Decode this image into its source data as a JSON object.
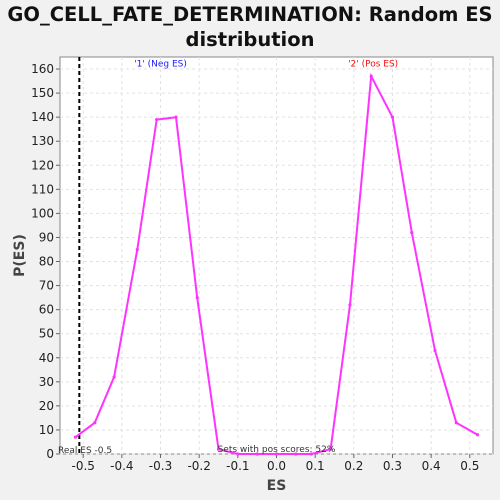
{
  "chart_data": {
    "type": "line",
    "title_lines": [
      "GO_CELL_FATE_DETERMINATION: Random ES",
      "distribution"
    ],
    "xlabel": "ES",
    "ylabel": "P(ES)",
    "xlim": [
      -0.56,
      0.56
    ],
    "ylim": [
      0,
      165
    ],
    "xticks": [
      -0.5,
      -0.4,
      -0.3,
      -0.2,
      -0.1,
      0.0,
      0.1,
      0.2,
      0.3,
      0.4,
      0.5
    ],
    "xtick_labels": [
      "-0.5",
      "-0.4",
      "-0.3",
      "-0.2",
      "-0.1",
      "0.0",
      "0.1",
      "0.2",
      "0.3",
      "0.4",
      "0.5"
    ],
    "yticks": [
      0,
      10,
      20,
      30,
      40,
      50,
      60,
      70,
      80,
      90,
      100,
      110,
      120,
      130,
      140,
      150,
      160
    ],
    "grid": true,
    "series": [
      {
        "color": "#ff33ff",
        "x": [
          -0.52,
          -0.47,
          -0.42,
          -0.36,
          -0.31,
          -0.26,
          -0.205,
          -0.15,
          -0.1,
          -0.05,
          0.0,
          0.05,
          0.09,
          0.14,
          0.19,
          0.245,
          0.3,
          0.35,
          0.41,
          0.465,
          0.52
        ],
        "y": [
          7,
          13,
          32,
          85,
          139,
          140,
          65,
          2,
          0,
          0,
          0,
          0,
          0,
          2,
          62,
          157,
          140,
          92,
          43,
          13,
          8
        ]
      }
    ],
    "real_es": {
      "x": -0.51,
      "label": "Real ES -0.5",
      "color": "#000000"
    },
    "annotations": [
      {
        "text": "'1' (Neg ES)",
        "x": -0.3,
        "y": 161,
        "color": "#1a1aff"
      },
      {
        "text": "'2' (Pos ES)",
        "x": 0.25,
        "y": 161,
        "color": "#ee1111"
      },
      {
        "text": "Sets with pos scores: 52%",
        "x": 0.0,
        "y": 0.5,
        "color": "#333333"
      }
    ]
  }
}
